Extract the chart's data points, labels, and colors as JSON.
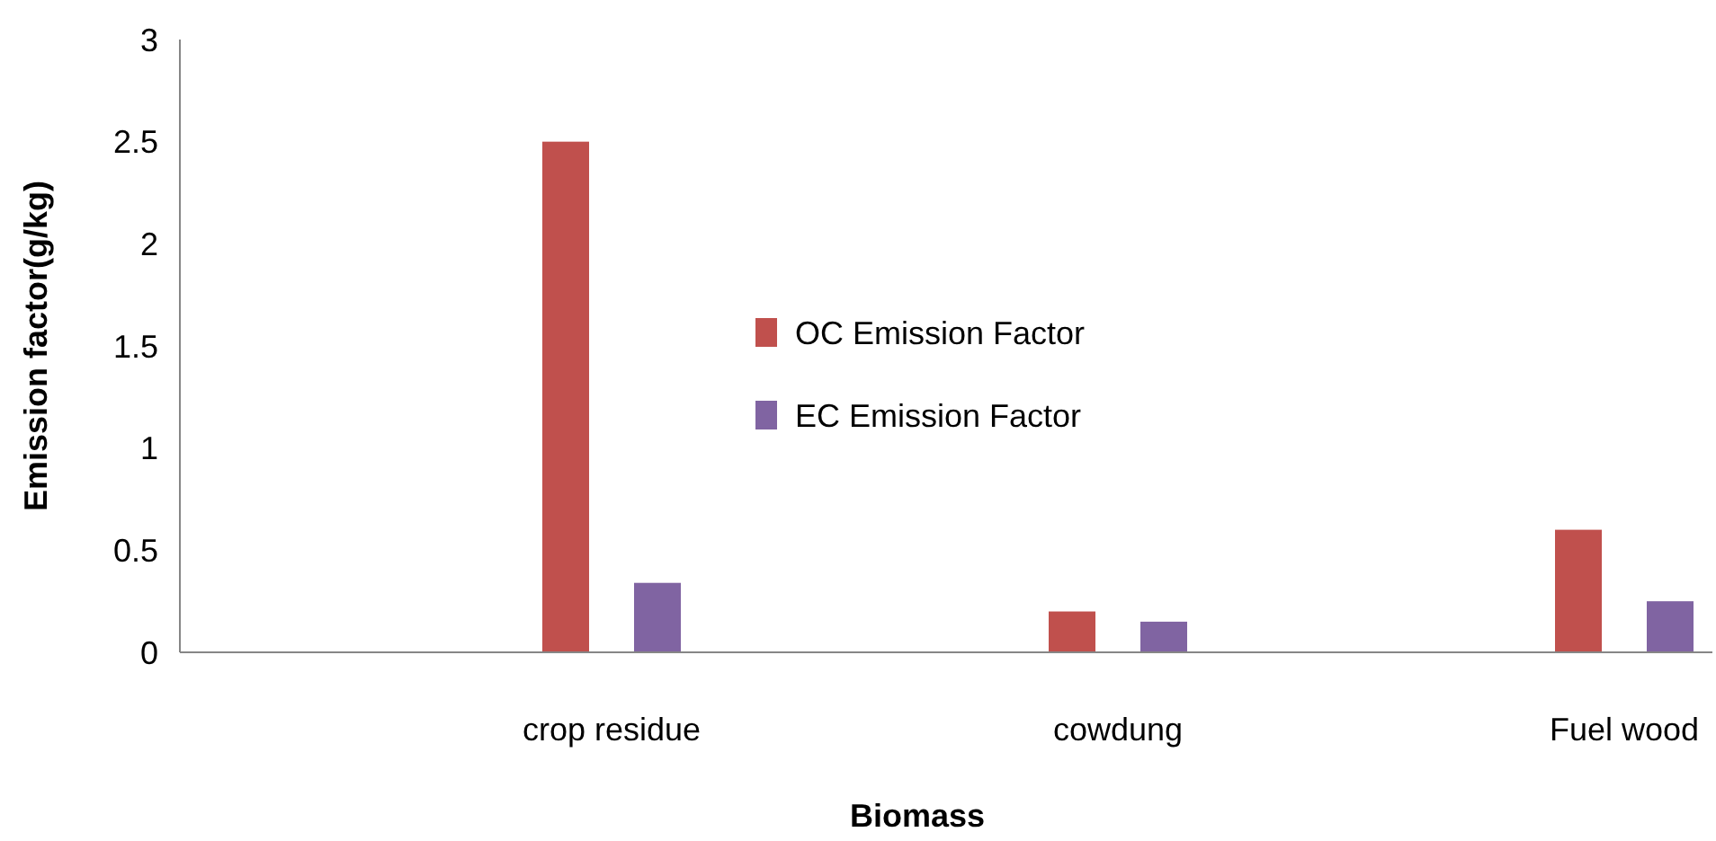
{
  "chart_data": {
    "type": "bar",
    "xlabel": "Biomass",
    "ylabel": "Emission factor(g/kg)",
    "categories": [
      "crop residue",
      "cowdung",
      "Fuel wood"
    ],
    "series": [
      {
        "name": "OC Emission Factor",
        "color": "#c0504d",
        "values": [
          2.5,
          0.2,
          0.6
        ]
      },
      {
        "name": "EC Emission Factor",
        "color": "#8064a2",
        "values": [
          0.34,
          0.15,
          0.25
        ]
      }
    ],
    "ylim": [
      0,
      3
    ],
    "yticks": [
      0,
      0.5,
      1,
      1.5,
      2,
      2.5,
      3
    ],
    "grid": false,
    "legend": "center"
  }
}
